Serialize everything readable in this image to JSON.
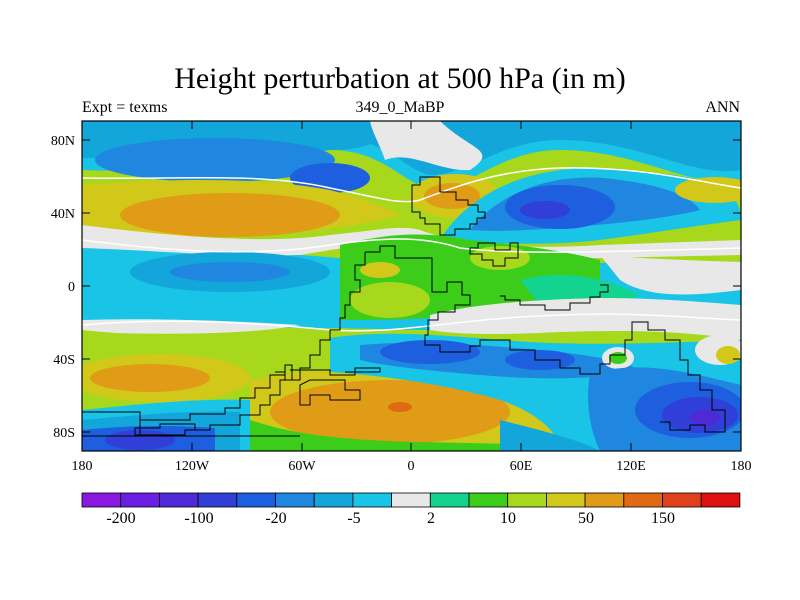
{
  "title": "Height perturbation at 500 hPa (in m)",
  "subtitle_left": "Expt = texms",
  "subtitle_center": "349_0_MaBP",
  "subtitle_right": "ANN",
  "x_ticks": [
    "180",
    "120W",
    "60W",
    "0",
    "60E",
    "120E",
    "180"
  ],
  "y_ticks": [
    "80N",
    "40N",
    "0",
    "40S",
    "80S"
  ],
  "colorbar": {
    "colors": [
      "#8a18e0",
      "#6a1ee4",
      "#4e29d6",
      "#2f3fd8",
      "#1e5fe0",
      "#1f87e0",
      "#12a6da",
      "#19c4e6",
      "#e8e8e8",
      "#13d48e",
      "#3ccc1a",
      "#a8d81c",
      "#d2c81a",
      "#e09c16",
      "#e06a14",
      "#e0401a",
      "#e01010"
    ],
    "labels": [
      "-200",
      "-100",
      "-20",
      "-5",
      "2",
      "10",
      "50",
      "150"
    ]
  }
}
